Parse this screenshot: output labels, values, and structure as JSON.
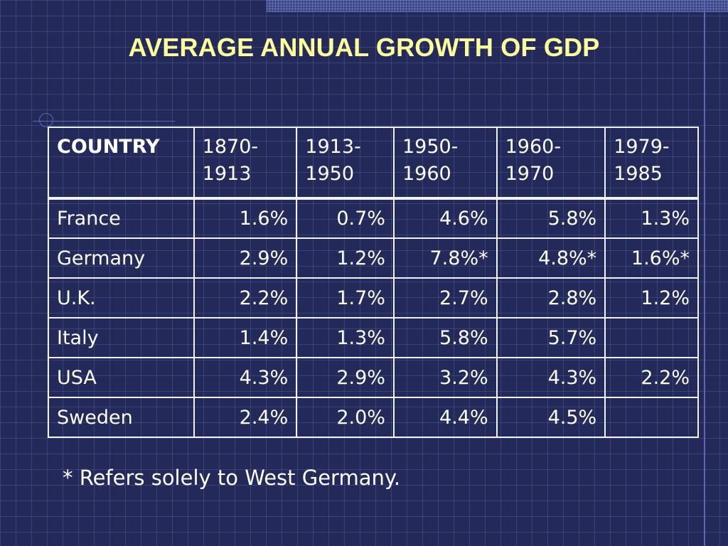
{
  "title": "AVERAGE ANNUAL GROWTH OF GDP",
  "table": {
    "headers": [
      {
        "line1": "COUNTRY",
        "line2": ""
      },
      {
        "line1": "1870-",
        "line2": "1913"
      },
      {
        "line1": "1913-",
        "line2": "1950"
      },
      {
        "line1": "1950-",
        "line2": "1960"
      },
      {
        "line1": "1960-",
        "line2": "1970"
      },
      {
        "line1": "1979-",
        "line2": "1985"
      }
    ],
    "rows": [
      [
        "France",
        "1.6%",
        "0.7%",
        "4.6%",
        "5.8%",
        "1.3%"
      ],
      [
        "Germany",
        "2.9%",
        "1.2%",
        "7.8%*",
        "4.8%*",
        "1.6%*"
      ],
      [
        "U.K.",
        "2.2%",
        "1.7%",
        "2.7%",
        "2.8%",
        "1.2%"
      ],
      [
        "Italy",
        "1.4%",
        "1.3%",
        "5.8%",
        "5.7%",
        ""
      ],
      [
        "USA",
        "4.3%",
        "2.9%",
        "3.2%",
        "4.3%",
        "2.2%"
      ],
      [
        "Sweden",
        "2.4%",
        "2.0%",
        "4.4%",
        "4.5%",
        ""
      ]
    ]
  },
  "footnote": "* Refers solely to West Germany.",
  "colors": {
    "background": "#232a5a",
    "title": "#ffff99",
    "text": "#ffffff",
    "grid": "#5a66b8"
  }
}
